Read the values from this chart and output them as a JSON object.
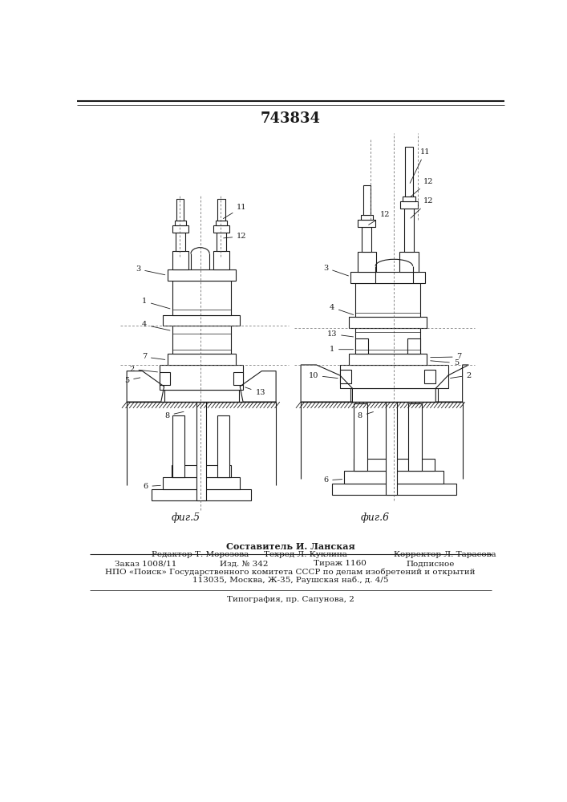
{
  "patent_number": "743834",
  "background_color": "#ffffff",
  "line_color": "#1a1a1a",
  "fig5_label": "фиг.5",
  "fig6_label": "фиг.6",
  "footer_bold": "Составитель И. Ланская",
  "footer_row1": "Редактор Т. Морозова",
  "footer_row1m": "Техред Л. Куклина",
  "footer_row1r": "Корректор Л. Тарасова",
  "footer_row2l": "Заказ 1008/11",
  "footer_row2m": "Изд. № 342",
  "footer_row2r1": "Тираж 1160",
  "footer_row2r2": "Подписное",
  "footer_row3": "НПО «Поиск» Государственного комитета СССР по делам изобретений и открытий",
  "footer_row4": "113035, Москва, Ж-35, Раушская наб., д. 4/5",
  "footer_last": "Типография, пр. Сапунова, 2"
}
